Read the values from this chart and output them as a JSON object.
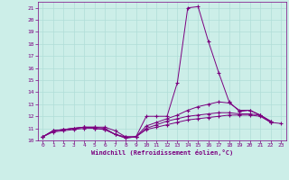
{
  "xlabel": "Windchill (Refroidissement éolien,°C)",
  "bg_color": "#cceee8",
  "line_color": "#7b0080",
  "grid_color": "#b0ddd8",
  "xlim": [
    -0.5,
    23.5
  ],
  "ylim": [
    10,
    21.5
  ],
  "yticks": [
    10,
    11,
    12,
    13,
    14,
    15,
    16,
    17,
    18,
    19,
    20,
    21
  ],
  "xticks": [
    0,
    1,
    2,
    3,
    4,
    5,
    6,
    7,
    8,
    9,
    10,
    11,
    12,
    13,
    14,
    15,
    16,
    17,
    18,
    19,
    20,
    21,
    22,
    23
  ],
  "series": [
    [
      10.3,
      10.8,
      10.9,
      11.0,
      11.1,
      11.1,
      11.1,
      10.8,
      10.3,
      10.3,
      12.0,
      12.0,
      12.0,
      14.8,
      21.0,
      21.1,
      18.2,
      15.6,
      13.2,
      12.4,
      12.5,
      12.1,
      11.6,
      null
    ],
    [
      10.3,
      10.8,
      10.9,
      11.0,
      11.1,
      11.1,
      11.0,
      10.5,
      10.3,
      10.3,
      11.2,
      11.5,
      11.8,
      12.1,
      12.5,
      12.8,
      13.0,
      13.2,
      13.1,
      12.5,
      12.5,
      12.1,
      11.5,
      null
    ],
    [
      10.3,
      10.8,
      10.9,
      11.0,
      11.1,
      11.0,
      10.9,
      10.5,
      10.2,
      10.3,
      11.0,
      11.3,
      11.6,
      11.8,
      12.0,
      12.1,
      12.2,
      12.3,
      12.3,
      12.2,
      12.2,
      12.1,
      11.6,
      null
    ],
    [
      10.3,
      10.7,
      10.8,
      10.9,
      11.0,
      11.0,
      10.9,
      10.5,
      10.2,
      10.3,
      10.9,
      11.1,
      11.3,
      11.5,
      11.7,
      11.8,
      11.9,
      12.0,
      12.1,
      12.1,
      12.1,
      12.0,
      11.5,
      11.4
    ]
  ]
}
